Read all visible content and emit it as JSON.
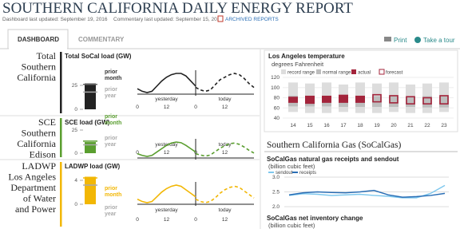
{
  "header": {
    "title": "SOUTHERN CALIFORNIA DAILY ENERGY REPORT",
    "dashboard_updated": "Dashboard last updated: September 19, 2016",
    "commentary_updated": "Commentary last updated: September 15, 2016",
    "archived": "ARCHIVED REPORTS"
  },
  "tabs": [
    "DASHBOARD",
    "COMMENTARY"
  ],
  "actions": [
    "Print",
    "Take a tour"
  ],
  "regions": [
    {
      "name_lines": [
        "Total",
        "Southern",
        "California"
      ],
      "load_title": "Total SoCal load (GW)",
      "color": "#222222",
      "bar_ticks": [
        25,
        0
      ],
      "current": 27,
      "prior_month": 26,
      "prior_year": 18,
      "prior_month_label": "prior month",
      "prior_year_label": "prior year",
      "day_labels": [
        "yesterday",
        "today"
      ],
      "hour_ticks": [
        0,
        12,
        0,
        12
      ],
      "yesterday": [
        17,
        16,
        15.5,
        16,
        18,
        20,
        21.5,
        22.5,
        23,
        23,
        22,
        20,
        18
      ],
      "today": [
        17.5,
        16.5,
        16,
        16.5,
        18.5,
        20.5,
        21.5,
        22.5,
        23,
        22.5,
        21,
        19,
        17.5
      ]
    },
    {
      "name_lines": [
        "SCE",
        "Southern",
        "California",
        "Edison"
      ],
      "load_title": "SCE load (GW)",
      "color": "#5a9e2f",
      "bar_ticks": [
        25,
        0
      ],
      "current": 12,
      "prior_month": 13,
      "prior_year": 9,
      "prior_month_label": "prior month",
      "prior_year_label": "prior year",
      "day_labels": [
        "yesterday",
        "today"
      ],
      "hour_ticks": [
        0,
        12,
        0,
        12
      ],
      "yesterday": [
        10,
        9.5,
        9.2,
        9.5,
        10.5,
        11.5,
        12.5,
        13.2,
        13.5,
        13.3,
        12.5,
        11.5,
        10.5
      ],
      "today": [
        10,
        9.6,
        9.3,
        9.6,
        10.6,
        11.6,
        12.4,
        13,
        13.2,
        12.8,
        12,
        11,
        10.2
      ]
    },
    {
      "name_lines": [
        "LADWP",
        "Los Angeles",
        "Department",
        "of Water",
        "and Power"
      ],
      "load_title": "LADWP load (GW)",
      "color": "#f2b705",
      "bar_ticks": [
        4,
        0
      ],
      "current": 4.6,
      "prior_month": 4.4,
      "prior_year": 3.2,
      "prior_month_label": "prior month",
      "prior_year_label": "prior year",
      "day_labels": [
        "yesterday",
        "today"
      ],
      "hour_ticks": [
        0,
        12,
        0,
        12
      ],
      "yesterday": [
        3.2,
        3.0,
        2.9,
        3.0,
        3.4,
        3.8,
        4.1,
        4.3,
        4.4,
        4.3,
        4.0,
        3.7,
        3.4
      ],
      "today": [
        3.2,
        3.0,
        2.9,
        3.0,
        3.3,
        3.7,
        4.0,
        4.2,
        4.3,
        4.2,
        3.9,
        3.6,
        3.3
      ]
    }
  ],
  "temperature": {
    "title": "Los Angeles temperature",
    "subtitle": "degrees Fahrenheit",
    "categories": [
      "14",
      "15",
      "16",
      "17",
      "18",
      "19",
      "20",
      "21",
      "22",
      "23"
    ],
    "ylim": [
      40,
      120
    ],
    "yticks": [
      40,
      60,
      80,
      100,
      120
    ],
    "series": [
      {
        "name": "record range",
        "color": "#dddddd",
        "low": [
          52,
          50,
          50,
          52,
          50,
          50,
          52,
          50,
          50,
          52
        ],
        "high": [
          110,
          108,
          110,
          106,
          110,
          108,
          110,
          106,
          108,
          110
        ]
      },
      {
        "name": "normal range",
        "color": "#bdbdbd",
        "low": [
          63,
          63,
          63,
          62,
          62,
          62,
          62,
          62,
          61,
          61
        ],
        "high": [
          84,
          84,
          84,
          84,
          84,
          83,
          83,
          83,
          83,
          83
        ]
      },
      {
        "name": "actual",
        "color": "#a3243b",
        "low": [
          70,
          68,
          70,
          70,
          70,
          null,
          null,
          null,
          null,
          null
        ],
        "high": [
          82,
          84,
          84,
          86,
          84,
          null,
          null,
          null,
          null,
          null
        ]
      },
      {
        "name": "forecast",
        "color": "#a3243b",
        "low": [
          null,
          null,
          null,
          null,
          null,
          72,
          70,
          68,
          68,
          68
        ],
        "high": [
          null,
          null,
          null,
          null,
          null,
          86,
          84,
          82,
          80,
          84
        ]
      }
    ]
  },
  "gas": {
    "section_title": "Southern California Gas (SoCalGas)",
    "chart_title": "SoCalGas natural gas receipts and sendout",
    "unit": "(billion cubic feet)",
    "ylim": [
      2,
      3
    ],
    "yticks": [
      {
        "value": 2,
        "label": "2.0"
      },
      {
        "value": 2.5,
        "label": "2.5"
      },
      {
        "value": 3,
        "label": "3.0"
      }
    ],
    "series": [
      {
        "name": "sendout",
        "color": "#7ec8ee",
        "values": [
          2.38,
          2.44,
          2.42,
          2.38,
          2.4,
          2.42,
          2.38,
          2.35,
          2.3,
          2.3,
          2.45,
          2.72
        ]
      },
      {
        "name": "receipts",
        "color": "#2a6eb5",
        "values": [
          2.4,
          2.47,
          2.5,
          2.48,
          2.47,
          2.5,
          2.55,
          2.4,
          2.32,
          2.34,
          2.38,
          2.45
        ]
      }
    ],
    "next_title": "SoCalGas net inventory change",
    "next_unit": "(billion cubic feet)"
  }
}
